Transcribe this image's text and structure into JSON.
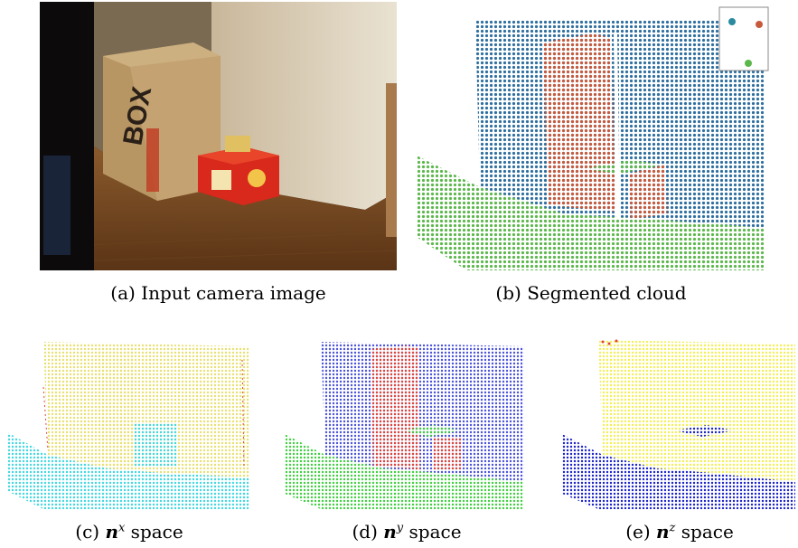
{
  "figure": {
    "panels": [
      {
        "id": "a",
        "caption": "(a) Input camera image"
      },
      {
        "id": "b",
        "caption": "(b) Segmented cloud"
      },
      {
        "id": "c",
        "prefix": "(c) ",
        "symbol": "n",
        "sup": "x",
        "suffix": " space"
      },
      {
        "id": "d",
        "prefix": "(d) ",
        "symbol": "n",
        "sup": "y",
        "suffix": " space"
      },
      {
        "id": "e",
        "prefix": "(e) ",
        "symbol": "n",
        "sup": "z",
        "suffix": " space"
      }
    ],
    "colors": {
      "segment_wall": "#2f6f9f",
      "segment_box": "#c85a3c",
      "segment_floor": "#5cb84c",
      "nx_wall": "#e8e070",
      "nx_floor": "#40d8e0",
      "ny_wall": "#4a52d8",
      "ny_box": "#e0453a",
      "ny_floor": "#3ed03e",
      "nz_wall": "#f4f050",
      "nz_floor": "#1a22c8"
    }
  }
}
